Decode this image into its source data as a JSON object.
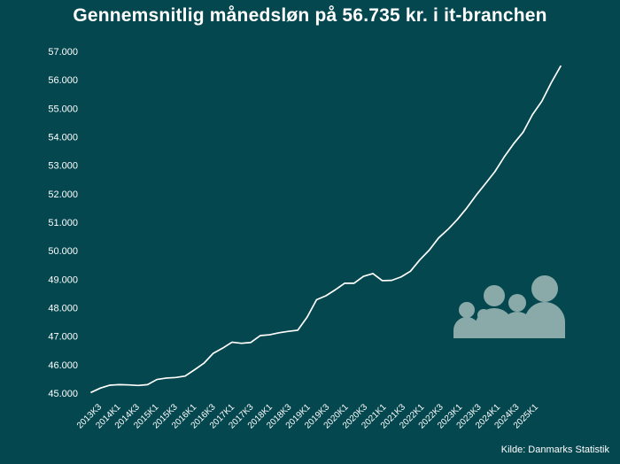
{
  "chart_data": {
    "type": "line",
    "title": "Gennemsnitlig månedsløn på 56.735 kr. i it-branchen",
    "source": "Kilde: Danmarks Statistik",
    "xlabel": "",
    "ylabel": "",
    "ylim": [
      45000,
      57000
    ],
    "yticks": [
      "45.000",
      "46.000",
      "47.000",
      "48.000",
      "49.000",
      "50.000",
      "51.000",
      "52.000",
      "53.000",
      "54.000",
      "55.000",
      "56.000",
      "57.000"
    ],
    "xticks": [
      "2013K3",
      "2014K1",
      "2014K3",
      "2015K1",
      "2015K3",
      "2016K1",
      "2016K3",
      "2017K1",
      "2017K3",
      "2018K1",
      "2018K3",
      "2019K1",
      "2019K3",
      "2020K1",
      "2020K3",
      "2021K1",
      "2021K3",
      "2022K1",
      "2022K3",
      "2023K1",
      "2023K3",
      "2024K1",
      "2024K3",
      "2025K1"
    ],
    "grid": false,
    "line_color": "#ffffff",
    "icon": "people-group-icon",
    "icon_color": "#8aaaa9",
    "series": [
      {
        "values": [
          45030,
          45180,
          45280,
          45300,
          45290,
          45270,
          45300,
          45480,
          45530,
          45550,
          45600,
          45820,
          46050,
          46400,
          46580,
          46790,
          46750,
          46780,
          47020,
          47050,
          47120,
          47170,
          47210,
          47670,
          48280,
          48420,
          48630,
          48860,
          48860,
          49100,
          49200,
          48950,
          48960,
          49080,
          49280,
          49680,
          50020,
          50450,
          50750,
          51100,
          51500,
          51950,
          52360,
          52780,
          53300,
          53760,
          54160,
          54780,
          55250,
          55900,
          56480
        ]
      }
    ]
  }
}
